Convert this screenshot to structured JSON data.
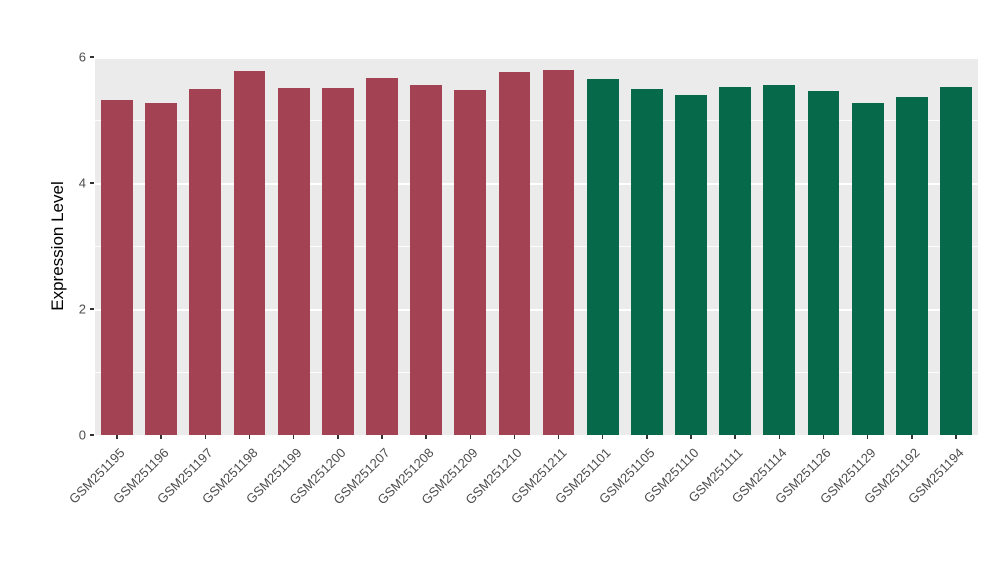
{
  "chart_data": {
    "type": "bar",
    "title": "",
    "xlabel": "",
    "ylabel": "Expression Level",
    "ylim": [
      0,
      6
    ],
    "yticks": [
      "0",
      "2",
      "4",
      "6"
    ],
    "ytick_values": [
      0,
      2,
      4,
      6
    ],
    "minor_grid_values": [
      1,
      3,
      5
    ],
    "grid": "on",
    "legend": "none",
    "panel_background": "#EBEBEB",
    "gridline_color": "#FFFFFF",
    "group_colors": {
      "group1": "#A34252",
      "group2": "#06694A"
    },
    "bars": [
      {
        "label": "GSM251195",
        "value": 5.31,
        "group": "group1"
      },
      {
        "label": "GSM251196",
        "value": 5.27,
        "group": "group1"
      },
      {
        "label": "GSM251197",
        "value": 5.5,
        "group": "group1"
      },
      {
        "label": "GSM251198",
        "value": 5.78,
        "group": "group1"
      },
      {
        "label": "GSM251199",
        "value": 5.51,
        "group": "group1"
      },
      {
        "label": "GSM251200",
        "value": 5.51,
        "group": "group1"
      },
      {
        "label": "GSM251207",
        "value": 5.67,
        "group": "group1"
      },
      {
        "label": "GSM251208",
        "value": 5.55,
        "group": "group1"
      },
      {
        "label": "GSM251209",
        "value": 5.48,
        "group": "group1"
      },
      {
        "label": "GSM251210",
        "value": 5.76,
        "group": "group1"
      },
      {
        "label": "GSM251211",
        "value": 5.79,
        "group": "group1"
      },
      {
        "label": "GSM251101",
        "value": 5.65,
        "group": "group2"
      },
      {
        "label": "GSM251105",
        "value": 5.5,
        "group": "group2"
      },
      {
        "label": "GSM251110",
        "value": 5.4,
        "group": "group2"
      },
      {
        "label": "GSM251111",
        "value": 5.53,
        "group": "group2"
      },
      {
        "label": "GSM251114",
        "value": 5.56,
        "group": "group2"
      },
      {
        "label": "GSM251126",
        "value": 5.46,
        "group": "group2"
      },
      {
        "label": "GSM251129",
        "value": 5.27,
        "group": "group2"
      },
      {
        "label": "GSM251192",
        "value": 5.37,
        "group": "group2"
      },
      {
        "label": "GSM251194",
        "value": 5.53,
        "group": "group2"
      }
    ]
  }
}
